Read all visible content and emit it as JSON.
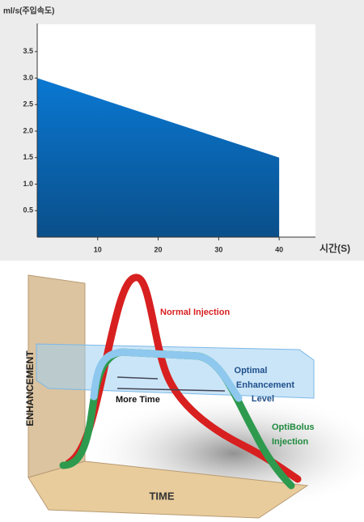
{
  "chart_data": {
    "type": "area",
    "y_label": "ml/s(주입속도)",
    "x_label": "시간(S)",
    "x": [
      0,
      40
    ],
    "values": [
      3.0,
      1.5
    ],
    "color": "#0a78d2",
    "xlim": [
      0,
      46
    ],
    "ylim": [
      0,
      4
    ],
    "xticks": [
      10,
      20,
      30,
      40
    ],
    "yticks": [
      0.5,
      {
        "value": 1,
        "label": "1.0"
      },
      1.5,
      {
        "value": 2,
        "label": "2.0"
      },
      2.5,
      {
        "value": 3,
        "label": "3.0"
      },
      3.5
    ],
    "grid": false
  },
  "illustration": {
    "axis_y": "ENHANCEMENT",
    "axis_x": "TIME",
    "normal": "Normal Injection",
    "optimal": [
      "Optimal",
      "Enhancement",
      "Level"
    ],
    "more_time": "More Time",
    "optibolus": [
      "OptiBolus",
      "Injection"
    ]
  }
}
